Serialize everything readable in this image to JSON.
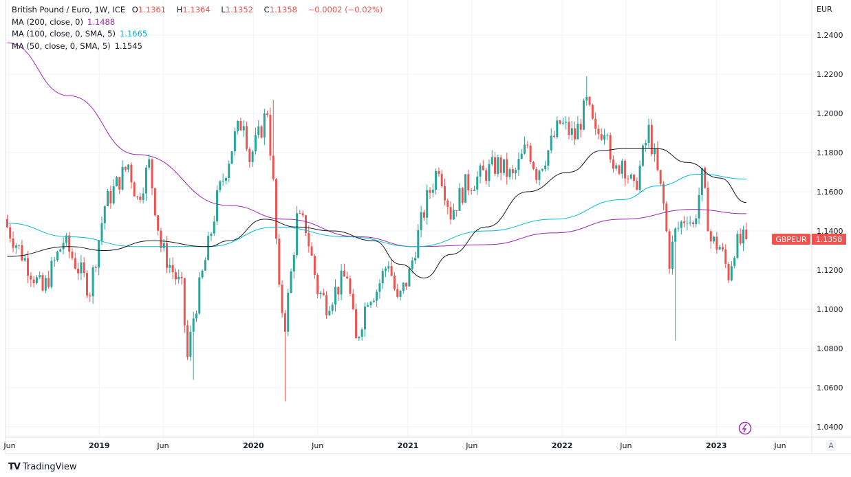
{
  "header": {
    "symbol_desc": "British Pound / Euro, 1W, ICE",
    "open_label": "O",
    "open": "1.1361",
    "high_label": "H",
    "high": "1.1364",
    "low_label": "L",
    "low": "1.1352",
    "close_label": "C",
    "close": "1.1358",
    "change": "−0.0002 (−0.02%)"
  },
  "indicators": [
    {
      "label": "MA (200, close, 0)",
      "value": "1.1488",
      "color": "#9c27b0"
    },
    {
      "label": "MA (100, close, 0, SMA, 5)",
      "value": "1.1665",
      "color": "#00bcd4"
    },
    {
      "label": "MA (50, close, 0, SMA, 5)",
      "value": "1.1545",
      "color": "#131722"
    }
  ],
  "price_tag": {
    "symbol": "GBPEUR",
    "value": "1.1358",
    "color": "#ef5350"
  },
  "auto_button": "A",
  "branding": "TradingView",
  "chart_data": {
    "type": "candlestick",
    "interval": "1W",
    "currency": "EUR",
    "ylim": [
      1.03,
      1.26
    ],
    "y_ticks": [
      "1.0400",
      "1.0600",
      "1.0800",
      "1.1000",
      "1.1200",
      "1.1400",
      "1.1600",
      "1.1800",
      "1.2000",
      "1.2200",
      "1.2400"
    ],
    "x_ticks": [
      {
        "label": "Jun",
        "date": "2018-06-01"
      },
      {
        "label": "2019",
        "date": "2019-01-01"
      },
      {
        "label": "Jun",
        "date": "2019-06-01"
      },
      {
        "label": "2020",
        "date": "2020-01-01"
      },
      {
        "label": "Jun",
        "date": "2020-06-01"
      },
      {
        "label": "2021",
        "date": "2021-01-01"
      },
      {
        "label": "Jun",
        "date": "2021-06-01"
      },
      {
        "label": "2022",
        "date": "2022-01-01"
      },
      {
        "label": "Jun",
        "date": "2022-06-01"
      },
      {
        "label": "2023",
        "date": "2023-01-01"
      },
      {
        "label": "Jun",
        "date": "2023-06-01"
      }
    ],
    "x_range": [
      "2018-05-24",
      "2023-08-15"
    ],
    "up_color": "#26a69a",
    "down_color": "#ef5350",
    "grid": true,
    "closes": [
      [
        "2018-05-28",
        1.142
      ],
      [
        "2018-07-30",
        1.117
      ],
      [
        "2018-08-20",
        1.109
      ],
      [
        "2018-10-08",
        1.135
      ],
      [
        "2018-12-10",
        1.11
      ],
      [
        "2019-01-14",
        1.153
      ],
      [
        "2019-03-11",
        1.174
      ],
      [
        "2019-04-01",
        1.156
      ],
      [
        "2019-04-29",
        1.174
      ],
      [
        "2019-05-27",
        1.132
      ],
      [
        "2019-07-15",
        1.11
      ],
      [
        "2019-07-29",
        1.075
      ],
      [
        "2019-08-12",
        1.096
      ],
      [
        "2019-09-16",
        1.132
      ],
      [
        "2019-10-07",
        1.156
      ],
      [
        "2019-11-18",
        1.188
      ],
      [
        "2019-12-09",
        1.198
      ],
      [
        "2019-12-23",
        1.177
      ],
      [
        "2020-01-13",
        1.188
      ],
      [
        "2020-02-03",
        1.202
      ],
      [
        "2020-02-17",
        1.163
      ],
      [
        "2020-03-02",
        1.107
      ],
      [
        "2020-03-16",
        1.093
      ],
      [
        "2020-03-30",
        1.118
      ],
      [
        "2020-04-13",
        1.146
      ],
      [
        "2020-05-04",
        1.142
      ],
      [
        "2020-06-01",
        1.11
      ],
      [
        "2020-06-22",
        1.103
      ],
      [
        "2020-08-10",
        1.118
      ],
      [
        "2020-08-31",
        1.083
      ],
      [
        "2020-09-28",
        1.107
      ],
      [
        "2020-10-19",
        1.11
      ],
      [
        "2020-11-16",
        1.125
      ],
      [
        "2020-12-07",
        1.103
      ],
      [
        "2021-01-04",
        1.118
      ],
      [
        "2021-01-18",
        1.132
      ],
      [
        "2021-02-15",
        1.156
      ],
      [
        "2021-03-15",
        1.174
      ],
      [
        "2021-04-12",
        1.149
      ],
      [
        "2021-05-17",
        1.163
      ],
      [
        "2021-07-05",
        1.17
      ],
      [
        "2021-08-02",
        1.174
      ],
      [
        "2021-09-06",
        1.167
      ],
      [
        "2021-10-11",
        1.184
      ],
      [
        "2021-11-01",
        1.17
      ],
      [
        "2021-11-29",
        1.181
      ],
      [
        "2021-12-27",
        1.195
      ],
      [
        "2022-01-31",
        1.188
      ],
      [
        "2022-02-28",
        1.205
      ],
      [
        "2022-03-21",
        1.188
      ],
      [
        "2022-04-18",
        1.195
      ],
      [
        "2022-05-02",
        1.167
      ],
      [
        "2022-05-23",
        1.177
      ],
      [
        "2022-06-20",
        1.16
      ],
      [
        "2022-07-25",
        1.191
      ],
      [
        "2022-08-08",
        1.177
      ],
      [
        "2022-08-29",
        1.153
      ],
      [
        "2022-09-12",
        1.125
      ],
      [
        "2022-09-26",
        1.139
      ],
      [
        "2022-10-24",
        1.149
      ],
      [
        "2022-11-07",
        1.142
      ],
      [
        "2022-11-28",
        1.167
      ],
      [
        "2022-12-19",
        1.135
      ],
      [
        "2023-01-09",
        1.132
      ],
      [
        "2023-01-30",
        1.118
      ],
      [
        "2023-02-13",
        1.132
      ],
      [
        "2023-03-13",
        1.1358
      ]
    ],
    "notable_wicks": [
      [
        "2019-08-12",
        "low",
        1.064
      ],
      [
        "2020-03-16",
        "low",
        1.053
      ],
      [
        "2020-02-17",
        "high",
        1.207
      ],
      [
        "2022-02-28",
        "high",
        1.219
      ],
      [
        "2022-09-26",
        "low",
        1.084
      ]
    ],
    "moving_averages": [
      {
        "name": "MA (200, close, 0)",
        "color": "#9c27b0",
        "points": [
          [
            "2018-05-28",
            1.236
          ],
          [
            "2018-10-22",
            1.209
          ],
          [
            "2019-04-01",
            1.179
          ],
          [
            "2019-11-04",
            1.153
          ],
          [
            "2020-03-16",
            1.146
          ],
          [
            "2020-09-07",
            1.137
          ],
          [
            "2021-01-18",
            1.132
          ],
          [
            "2021-07-05",
            1.133
          ],
          [
            "2021-12-13",
            1.139
          ],
          [
            "2022-05-23",
            1.146
          ],
          [
            "2022-11-07",
            1.151
          ],
          [
            "2023-03-13",
            1.1488
          ]
        ]
      },
      {
        "name": "MA (100, close, 0, SMA, 5)",
        "color": "#00bcd4",
        "points": [
          [
            "2018-05-28",
            1.144
          ],
          [
            "2018-10-22",
            1.137
          ],
          [
            "2019-04-01",
            1.132
          ],
          [
            "2019-09-16",
            1.132
          ],
          [
            "2020-02-24",
            1.142
          ],
          [
            "2020-08-10",
            1.137
          ],
          [
            "2021-01-18",
            1.132
          ],
          [
            "2021-07-05",
            1.14
          ],
          [
            "2021-12-13",
            1.146
          ],
          [
            "2022-05-23",
            1.156
          ],
          [
            "2022-08-15",
            1.163
          ],
          [
            "2022-11-21",
            1.169
          ],
          [
            "2023-03-13",
            1.1665
          ]
        ]
      },
      {
        "name": "MA (50, close, 0, SMA, 5)",
        "color": "#131722",
        "points": [
          [
            "2018-05-28",
            1.127
          ],
          [
            "2018-10-22",
            1.132
          ],
          [
            "2019-01-14",
            1.13
          ],
          [
            "2019-05-06",
            1.135
          ],
          [
            "2019-09-16",
            1.132
          ],
          [
            "2019-11-04",
            1.135
          ],
          [
            "2020-01-27",
            1.146
          ],
          [
            "2020-04-13",
            1.142
          ],
          [
            "2020-07-06",
            1.14
          ],
          [
            "2020-10-12",
            1.135
          ],
          [
            "2020-12-14",
            1.123
          ],
          [
            "2021-02-08",
            1.116
          ],
          [
            "2021-04-12",
            1.128
          ],
          [
            "2021-07-05",
            1.142
          ],
          [
            "2021-10-11",
            1.16
          ],
          [
            "2022-01-17",
            1.17
          ],
          [
            "2022-04-04",
            1.181
          ],
          [
            "2022-05-23",
            1.182
          ],
          [
            "2022-08-15",
            1.182
          ],
          [
            "2022-10-24",
            1.175
          ],
          [
            "2023-01-09",
            1.167
          ],
          [
            "2023-03-13",
            1.1545
          ]
        ]
      }
    ]
  }
}
